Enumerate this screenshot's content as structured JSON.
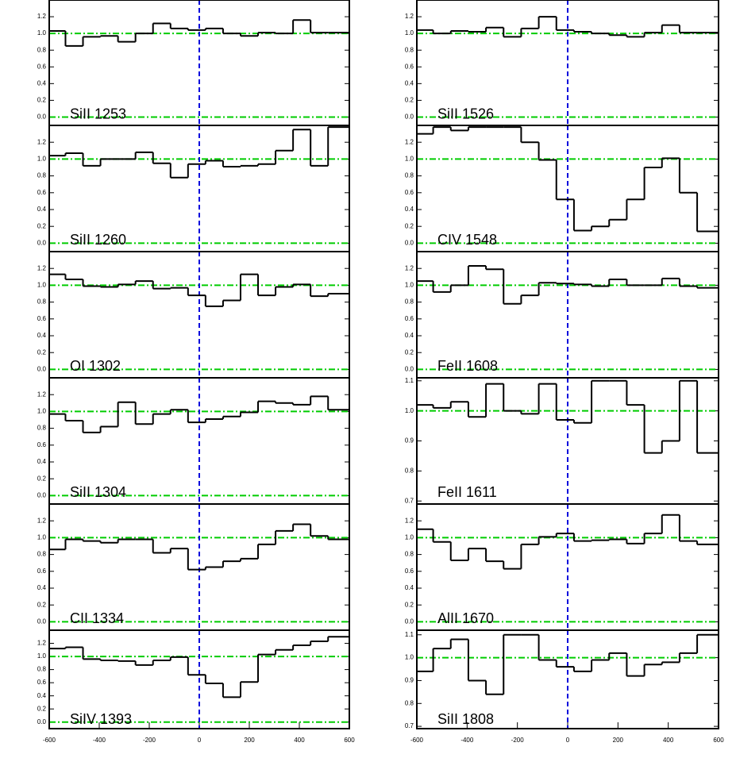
{
  "chart_data": [
    {
      "type": "line",
      "label": "SiII 1253",
      "xlim": [
        -600,
        600
      ],
      "ylim": [
        -0.1,
        1.4
      ],
      "yticks": [
        {
          "value": 0,
          "label": "0.0"
        },
        0.2,
        0.4,
        0.6,
        0.8,
        {
          "value": 1,
          "label": "1.0"
        },
        1.2
      ],
      "hlines": [
        1,
        0
      ],
      "hline_color": "#00cc00",
      "vlines": [
        0
      ],
      "vline_color": "#0000dd",
      "color": "#000000",
      "x": [
        -570,
        -500,
        -430,
        -360,
        -290,
        -220,
        -150,
        -80,
        -10,
        60,
        130,
        200,
        270,
        340,
        410,
        480,
        550
      ],
      "values": [
        1.03,
        0.85,
        0.96,
        0.97,
        0.9,
        1.0,
        1.12,
        1.06,
        1.04,
        1.06,
        1.0,
        0.97,
        1.01,
        1.0,
        1.16,
        1.01,
        1.01
      ]
    },
    {
      "type": "line",
      "label": "SiII 1260",
      "xlim": [
        -600,
        600
      ],
      "ylim": [
        -0.1,
        1.4
      ],
      "yticks": [
        {
          "value": 0,
          "label": "0.0"
        },
        0.2,
        0.4,
        0.6,
        0.8,
        {
          "value": 1,
          "label": "1.0"
        },
        1.2
      ],
      "hlines": [
        1,
        0
      ],
      "hline_color": "#00cc00",
      "vlines": [
        0
      ],
      "vline_color": "#0000dd",
      "color": "#000000",
      "x": [
        -570,
        -500,
        -430,
        -360,
        -290,
        -220,
        -150,
        -80,
        -10,
        60,
        130,
        200,
        270,
        340,
        410,
        480,
        550
      ],
      "values": [
        1.04,
        1.07,
        0.92,
        1.0,
        1.0,
        1.08,
        0.95,
        0.78,
        0.94,
        0.98,
        0.91,
        0.92,
        0.94,
        1.1,
        1.35,
        0.92,
        1.38
      ]
    },
    {
      "type": "line",
      "label": "OI 1302",
      "xlim": [
        -600,
        600
      ],
      "ylim": [
        -0.1,
        1.4
      ],
      "yticks": [
        {
          "value": 0,
          "label": "0.0"
        },
        0.2,
        0.4,
        0.6,
        0.8,
        {
          "value": 1,
          "label": "1.0"
        },
        1.2
      ],
      "hlines": [
        1,
        0
      ],
      "hline_color": "#00cc00",
      "vlines": [
        0
      ],
      "vline_color": "#0000dd",
      "color": "#000000",
      "x": [
        -570,
        -500,
        -430,
        -360,
        -290,
        -220,
        -150,
        -80,
        -10,
        60,
        130,
        200,
        270,
        340,
        410,
        480,
        550
      ],
      "values": [
        1.13,
        1.07,
        0.99,
        0.98,
        1.01,
        1.05,
        0.96,
        0.97,
        0.88,
        0.75,
        0.82,
        1.13,
        0.88,
        0.98,
        1.01,
        0.87,
        0.9
      ]
    },
    {
      "type": "line",
      "label": "SiII 1304",
      "xlim": [
        -600,
        600
      ],
      "ylim": [
        -0.1,
        1.4
      ],
      "yticks": [
        {
          "value": 0,
          "label": "0.0"
        },
        0.2,
        0.4,
        0.6,
        0.8,
        {
          "value": 1,
          "label": "1.0"
        },
        1.2
      ],
      "hlines": [
        1,
        0
      ],
      "hline_color": "#00cc00",
      "vlines": [
        0
      ],
      "vline_color": "#0000dd",
      "color": "#000000",
      "x": [
        -570,
        -500,
        -430,
        -360,
        -290,
        -220,
        -150,
        -80,
        -10,
        60,
        130,
        200,
        270,
        340,
        410,
        480,
        550
      ],
      "values": [
        0.97,
        0.89,
        0.75,
        0.82,
        1.11,
        0.85,
        0.97,
        1.02,
        0.87,
        0.91,
        0.94,
        0.99,
        1.12,
        1.1,
        1.08,
        1.18,
        1.02
      ]
    },
    {
      "type": "line",
      "label": "CII 1334",
      "xlim": [
        -600,
        600
      ],
      "ylim": [
        -0.1,
        1.4
      ],
      "yticks": [
        {
          "value": 0,
          "label": "0.0"
        },
        0.2,
        0.4,
        0.6,
        0.8,
        {
          "value": 1,
          "label": "1.0"
        },
        1.2
      ],
      "hlines": [
        1,
        0
      ],
      "hline_color": "#00cc00",
      "vlines": [
        0
      ],
      "vline_color": "#0000dd",
      "color": "#000000",
      "x": [
        -570,
        -500,
        -430,
        -360,
        -290,
        -220,
        -150,
        -80,
        -10,
        60,
        130,
        200,
        270,
        340,
        410,
        480,
        550
      ],
      "values": [
        0.86,
        0.98,
        0.96,
        0.94,
        0.98,
        0.98,
        0.82,
        0.87,
        0.62,
        0.65,
        0.72,
        0.75,
        0.92,
        1.08,
        1.16,
        1.02,
        0.98
      ]
    },
    {
      "type": "line",
      "label": "SiIV 1393",
      "xlim": [
        -600,
        600
      ],
      "ylim": [
        -0.1,
        1.4
      ],
      "yticks": [
        {
          "value": 0,
          "label": "0.0"
        },
        0.2,
        0.4,
        0.6,
        0.8,
        {
          "value": 1,
          "label": "1.0"
        },
        1.2
      ],
      "xticks": [
        -600,
        -400,
        -200,
        0,
        200,
        400,
        600
      ],
      "hlines": [
        1,
        0
      ],
      "hline_color": "#00cc00",
      "vlines": [
        0
      ],
      "vline_color": "#0000dd",
      "color": "#000000",
      "x": [
        -570,
        -500,
        -430,
        -360,
        -290,
        -220,
        -150,
        -80,
        -10,
        60,
        130,
        200,
        270,
        340,
        410,
        480,
        550
      ],
      "values": [
        1.12,
        1.14,
        0.96,
        0.94,
        0.93,
        0.87,
        0.94,
        0.99,
        0.72,
        0.59,
        0.38,
        0.61,
        1.03,
        1.1,
        1.17,
        1.23,
        1.3
      ]
    },
    {
      "type": "line",
      "label": "SiII 1526",
      "xlim": [
        -600,
        600
      ],
      "ylim": [
        -0.1,
        1.4
      ],
      "yticks": [
        {
          "value": 0,
          "label": "0.0"
        },
        0.2,
        0.4,
        0.6,
        0.8,
        {
          "value": 1,
          "label": "1.0"
        },
        1.2
      ],
      "hlines": [
        1,
        0
      ],
      "hline_color": "#00cc00",
      "vlines": [
        0
      ],
      "vline_color": "#0000dd",
      "color": "#000000",
      "x": [
        -570,
        -500,
        -430,
        -360,
        -290,
        -220,
        -150,
        -80,
        -10,
        60,
        130,
        200,
        270,
        340,
        410,
        480,
        550
      ],
      "values": [
        1.04,
        1.0,
        1.03,
        1.02,
        1.07,
        0.96,
        1.06,
        1.2,
        1.04,
        1.02,
        1.0,
        0.98,
        0.96,
        1.01,
        1.1,
        1.01,
        1.01
      ]
    },
    {
      "type": "line",
      "label": "CIV 1548",
      "xlim": [
        -600,
        600
      ],
      "ylim": [
        -0.1,
        1.4
      ],
      "yticks": [
        {
          "value": 0,
          "label": "0.0"
        },
        0.2,
        0.4,
        0.6,
        0.8,
        {
          "value": 1,
          "label": "1.0"
        },
        1.2
      ],
      "hlines": [
        1,
        0
      ],
      "hline_color": "#00cc00",
      "vlines": [
        0
      ],
      "vline_color": "#0000dd",
      "color": "#000000",
      "x": [
        -570,
        -500,
        -430,
        -360,
        -290,
        -220,
        -150,
        -80,
        -10,
        60,
        130,
        200,
        270,
        340,
        410,
        480,
        550
      ],
      "values": [
        1.3,
        1.38,
        1.34,
        1.38,
        1.38,
        1.38,
        1.2,
        0.99,
        0.52,
        0.15,
        0.2,
        0.28,
        0.52,
        0.9,
        1.01,
        0.6,
        0.14
      ]
    },
    {
      "type": "line",
      "label": "FeII 1608",
      "xlim": [
        -600,
        600
      ],
      "ylim": [
        -0.1,
        1.4
      ],
      "yticks": [
        {
          "value": 0,
          "label": "0.0"
        },
        0.2,
        0.4,
        0.6,
        0.8,
        {
          "value": 1,
          "label": "1.0"
        },
        1.2
      ],
      "hlines": [
        1,
        0
      ],
      "hline_color": "#00cc00",
      "vlines": [
        0
      ],
      "vline_color": "#0000dd",
      "color": "#000000",
      "x": [
        -570,
        -500,
        -430,
        -360,
        -290,
        -220,
        -150,
        -80,
        -10,
        60,
        130,
        200,
        270,
        340,
        410,
        480,
        550
      ],
      "values": [
        1.05,
        0.92,
        1.0,
        1.23,
        1.19,
        0.78,
        0.88,
        1.03,
        1.02,
        1.01,
        0.99,
        1.07,
        1.0,
        1.0,
        1.08,
        0.99,
        0.97
      ]
    },
    {
      "type": "line",
      "label": "FeII 1611",
      "xlim": [
        -600,
        600
      ],
      "ylim": [
        0.69,
        1.11
      ],
      "yticks": [
        0.7,
        0.8,
        0.9,
        {
          "value": 1,
          "label": "1.0"
        },
        1.1
      ],
      "hlines": [
        1
      ],
      "hline_color": "#00cc00",
      "vlines": [
        0
      ],
      "vline_color": "#0000dd",
      "color": "#000000",
      "x": [
        -570,
        -500,
        -430,
        -360,
        -290,
        -220,
        -150,
        -80,
        -10,
        60,
        130,
        200,
        270,
        340,
        410,
        480,
        550
      ],
      "values": [
        1.02,
        1.01,
        1.03,
        0.98,
        1.09,
        1.0,
        0.99,
        1.09,
        0.97,
        0.96,
        1.1,
        1.1,
        1.02,
        0.86,
        0.9,
        1.1,
        0.86
      ]
    },
    {
      "type": "line",
      "label": "AlII 1670",
      "xlim": [
        -600,
        600
      ],
      "ylim": [
        -0.1,
        1.4
      ],
      "yticks": [
        {
          "value": 0,
          "label": "0.0"
        },
        0.2,
        0.4,
        0.6,
        0.8,
        {
          "value": 1,
          "label": "1.0"
        },
        1.2
      ],
      "hlines": [
        1,
        0
      ],
      "hline_color": "#00cc00",
      "vlines": [
        0
      ],
      "vline_color": "#0000dd",
      "color": "#000000",
      "x": [
        -570,
        -500,
        -430,
        -360,
        -290,
        -220,
        -150,
        -80,
        -10,
        60,
        130,
        200,
        270,
        340,
        410,
        480,
        550
      ],
      "values": [
        1.1,
        0.95,
        0.73,
        0.87,
        0.72,
        0.63,
        0.92,
        1.01,
        1.05,
        0.96,
        0.97,
        0.98,
        0.93,
        1.05,
        1.27,
        0.96,
        0.92
      ]
    },
    {
      "type": "line",
      "label": "SiII 1808",
      "xlim": [
        -600,
        600
      ],
      "ylim": [
        0.69,
        1.12
      ],
      "yticks": [
        0.7,
        0.8,
        0.9,
        {
          "value": 1,
          "label": "1.0"
        },
        1.1
      ],
      "xticks": [
        -600,
        -400,
        -200,
        0,
        200,
        400,
        600
      ],
      "hlines": [
        1
      ],
      "hline_color": "#00cc00",
      "vlines": [
        0
      ],
      "vline_color": "#0000dd",
      "color": "#000000",
      "x": [
        -570,
        -500,
        -430,
        -360,
        -290,
        -220,
        -150,
        -80,
        -10,
        60,
        130,
        200,
        270,
        340,
        410,
        480,
        550
      ],
      "values": [
        0.94,
        1.04,
        1.08,
        0.9,
        0.84,
        1.1,
        1.1,
        0.99,
        0.96,
        0.94,
        0.99,
        1.02,
        0.92,
        0.97,
        0.98,
        1.02,
        1.1
      ]
    }
  ]
}
